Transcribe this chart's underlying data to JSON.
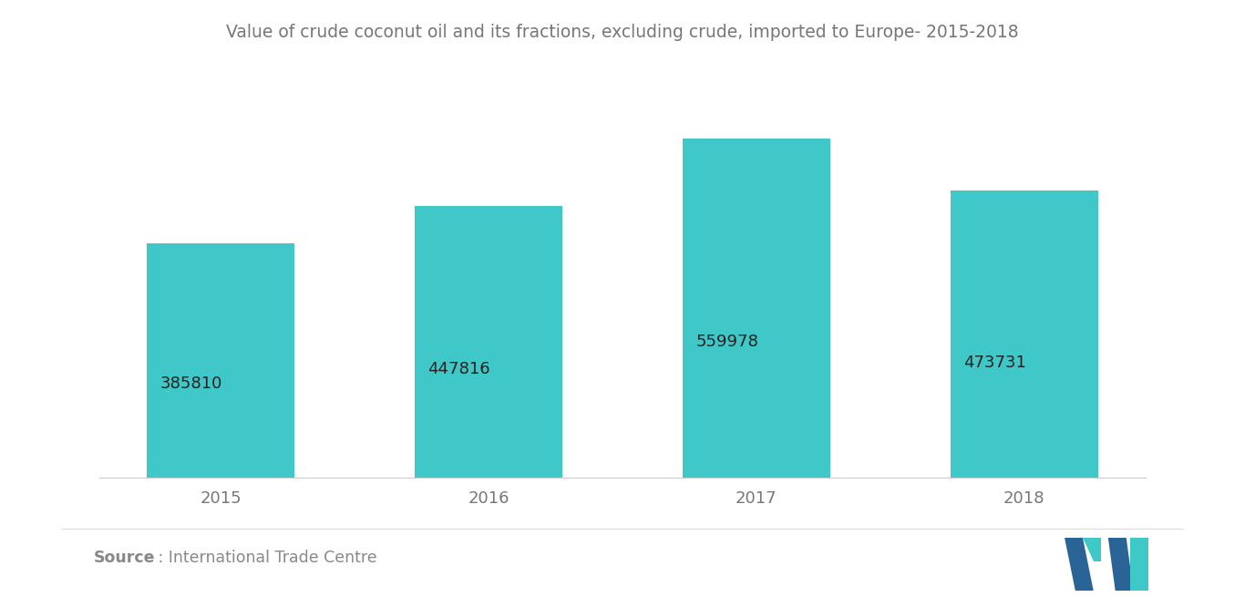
{
  "title": "Value of crude coconut oil and its fractions, excluding crude, imported to Europe- 2015-2018",
  "categories": [
    "2015",
    "2016",
    "2017",
    "2018"
  ],
  "values": [
    385810,
    447816,
    559978,
    473731
  ],
  "bar_color": "#40C8C8",
  "bar_width": 0.55,
  "background_color": "#ffffff",
  "title_fontsize": 13.5,
  "tick_fontsize": 13,
  "source_bold": "Source",
  "source_rest": " : International Trade Centre",
  "source_fontsize": 12.5,
  "source_color": "#888888",
  "ylim": [
    0,
    660000
  ],
  "value_label_color": "#222222",
  "value_label_fontsize": 13,
  "logo_dark": "#2A6496",
  "logo_teal": "#3EC8C8"
}
